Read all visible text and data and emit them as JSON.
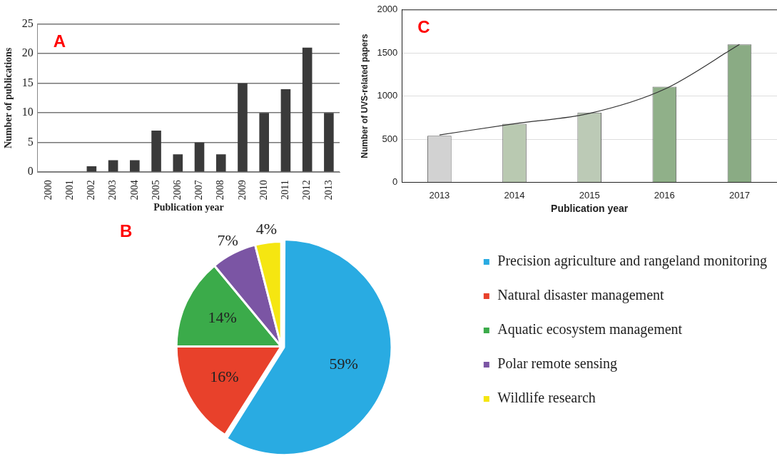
{
  "chart_data": [
    {
      "type": "bar",
      "annotations": [
        "A"
      ],
      "xlabel": "Publication year",
      "ylabel": "Number of publications",
      "categories": [
        "2000",
        "2001",
        "2002",
        "2003",
        "2004",
        "2005",
        "2006",
        "2007",
        "2008",
        "2009",
        "2010",
        "2011",
        "2012",
        "2013"
      ],
      "series": [
        {
          "color": "#3a3a3a",
          "values": [
            0,
            0,
            1,
            2,
            2,
            7,
            3,
            5,
            3,
            15,
            10,
            14,
            21,
            10
          ]
        }
      ],
      "ylim": [
        0,
        25
      ],
      "yticks": [
        0,
        5,
        10,
        15,
        20,
        25
      ],
      "grid": "y",
      "legend": false
    },
    {
      "type": "bar",
      "annotations": [
        "C"
      ],
      "xlabel": "Publication year",
      "ylabel": "Number of UVS-related papers",
      "categories": [
        "2013",
        "2014",
        "2015",
        "2016",
        "2017"
      ],
      "series": [
        {
          "type": "bar",
          "colors": [
            "#d2d2d2",
            "#b9c9b1",
            "#bccab6",
            "#90b089",
            "#8aab84"
          ],
          "values": [
            540,
            680,
            810,
            1110,
            1600
          ]
        },
        {
          "type": "line",
          "color": "#333333",
          "values": [
            550,
            680,
            800,
            1080,
            1600
          ]
        }
      ],
      "ylim": [
        0,
        2000
      ],
      "yticks": [
        0,
        500,
        1000,
        1500,
        2000
      ],
      "grid": "y",
      "legend": false
    },
    {
      "type": "pie",
      "annotations": [
        "B"
      ],
      "categories": [
        "Precision agriculture and rangeland monitoring",
        "Natural disaster management",
        "Aquatic ecosystem management",
        "Polar remote sensing",
        "Wildlife research"
      ],
      "values": [
        59,
        16,
        14,
        7,
        4
      ],
      "colors": [
        "#29abe2",
        "#e8412b",
        "#3bab4a",
        "#7b55a4",
        "#f5e611"
      ],
      "value_labels": [
        "59%",
        "16%",
        "14%",
        "7%",
        "4%"
      ],
      "legend": "right"
    }
  ]
}
